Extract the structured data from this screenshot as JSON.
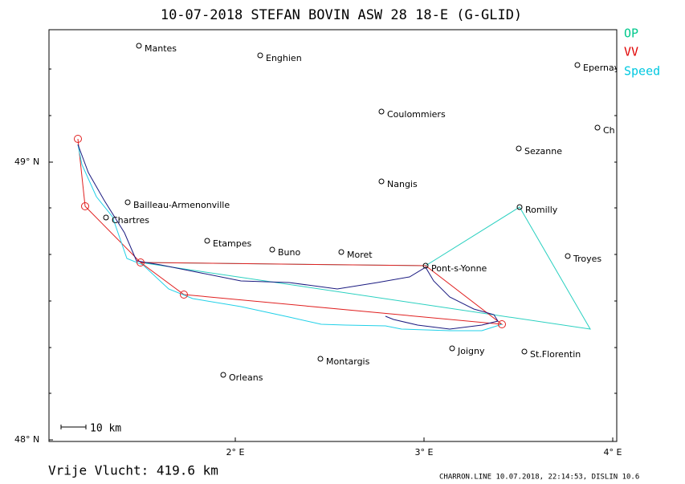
{
  "header": {
    "title": "10-07-2018   STEFAN BOVIN   ASW 28 18-E (G-GLID)"
  },
  "legend": {
    "items": [
      "OP",
      "VV",
      "Speed"
    ]
  },
  "axes": {
    "y_labels": [
      "49° N",
      "48° N"
    ],
    "x_labels": [
      "2° E",
      "3° E",
      "4° E"
    ]
  },
  "towns": [
    "Mantes",
    "Enghien",
    "Epernay",
    "Ch",
    "Coulommiers",
    "Sezanne",
    "Nangis",
    "Romilly",
    "Bailleau-Armenonville",
    "Chartres",
    "Etampes",
    "Buno",
    "Moret",
    "Troyes",
    "Pont-s-Yonne",
    "Joigny",
    "St.Florentin",
    "Montargis",
    "Orleans"
  ],
  "scale": {
    "label": "10  km"
  },
  "footer": {
    "distance": "Vrije Vlucht:  419.6 km",
    "info": "CHARRON.LINE 10.07.2018, 22:14:53, DISLIN 10.6"
  }
}
